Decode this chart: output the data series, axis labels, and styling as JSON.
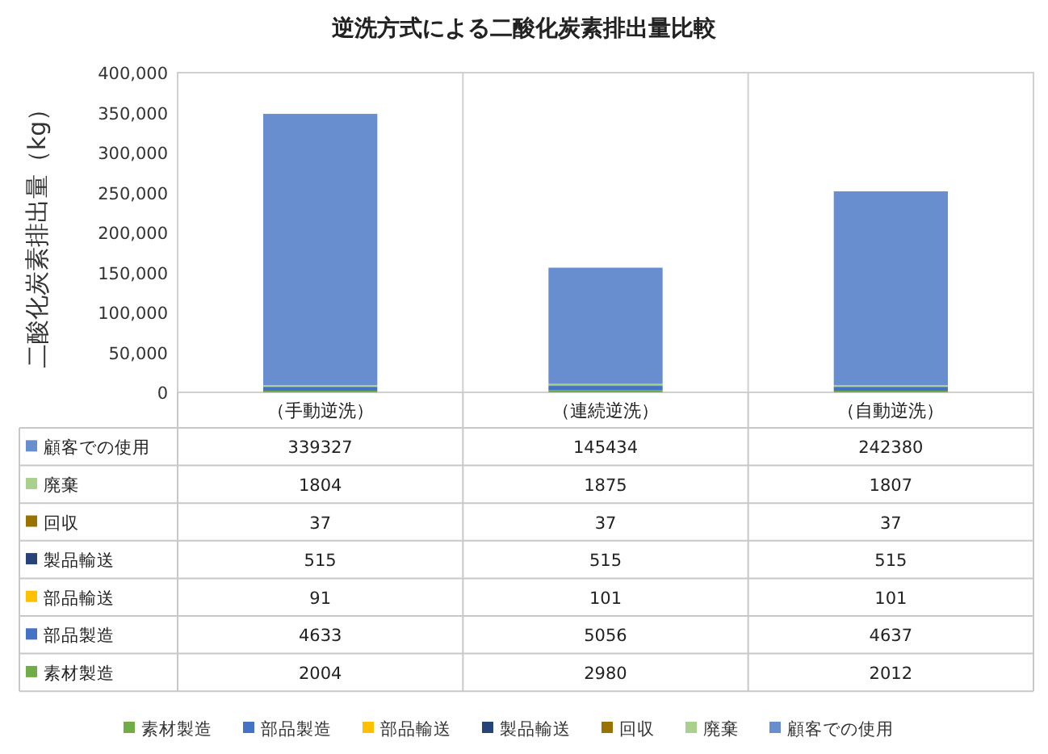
{
  "chart_data": {
    "type": "bar",
    "title": "逆洗方式による二酸化炭素排出量比較",
    "ylabel": "二酸化炭素排出量（kg）",
    "categories": [
      "（手動逆洗）",
      "（連続逆洗）",
      "（自動逆洗）"
    ],
    "stacked": true,
    "data_labels": true,
    "legend": "bottom",
    "grid": false,
    "ylim": [
      0,
      400000
    ],
    "yticks": [
      {
        "value": 0,
        "label": "0"
      },
      {
        "value": 50000,
        "label": "50,000"
      },
      {
        "value": 100000,
        "label": "100,000"
      },
      {
        "value": 150000,
        "label": "150,000"
      },
      {
        "value": 200000,
        "label": "200,000"
      },
      {
        "value": 250000,
        "label": "250,000"
      },
      {
        "value": 300000,
        "label": "300,000"
      },
      {
        "value": 350000,
        "label": "350,000"
      },
      {
        "value": 400000,
        "label": "400,000"
      }
    ],
    "series": [
      {
        "name": "素材製造",
        "color": "#70ad47",
        "values": [
          2004,
          2980,
          2012
        ]
      },
      {
        "name": "部品製造",
        "color": "#4472c4",
        "values": [
          4633,
          5056,
          4637
        ]
      },
      {
        "name": "部品輸送",
        "color": "#ffc000",
        "values": [
          91,
          101,
          101
        ]
      },
      {
        "name": "製品輸送",
        "color": "#264478",
        "values": [
          515,
          515,
          515
        ]
      },
      {
        "name": "回収",
        "color": "#997300",
        "values": [
          37,
          37,
          37
        ]
      },
      {
        "name": "廃棄",
        "color": "#a9d18e",
        "values": [
          1804,
          1875,
          1807
        ]
      },
      {
        "name": "顧客での使用",
        "color": "#698ed0",
        "values": [
          339327,
          145434,
          242380
        ]
      }
    ]
  }
}
